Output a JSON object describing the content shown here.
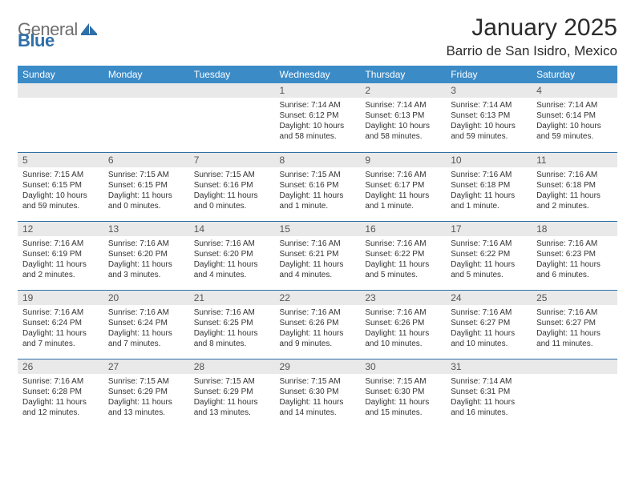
{
  "brand": {
    "part1": "General",
    "part2": "Blue"
  },
  "title": "January 2025",
  "location": "Barrio de San Isidro, Mexico",
  "colors": {
    "header_bg": "#3b8bc7",
    "header_text": "#ffffff",
    "daynum_bg": "#e9e9e9",
    "row_border": "#2f6fa8",
    "logo_gray": "#6e6e6e",
    "logo_blue": "#2f6fa8",
    "body_text": "#333333",
    "page_bg": "#ffffff"
  },
  "typography": {
    "title_pt": 30,
    "location_pt": 17,
    "header_pt": 12,
    "daynum_pt": 12,
    "body_pt": 10
  },
  "weekdays": [
    "Sunday",
    "Monday",
    "Tuesday",
    "Wednesday",
    "Thursday",
    "Friday",
    "Saturday"
  ],
  "weeks": [
    [
      null,
      null,
      null,
      {
        "n": "1",
        "l1": "Sunrise: 7:14 AM",
        "l2": "Sunset: 6:12 PM",
        "l3": "Daylight: 10 hours",
        "l4": "and 58 minutes."
      },
      {
        "n": "2",
        "l1": "Sunrise: 7:14 AM",
        "l2": "Sunset: 6:13 PM",
        "l3": "Daylight: 10 hours",
        "l4": "and 58 minutes."
      },
      {
        "n": "3",
        "l1": "Sunrise: 7:14 AM",
        "l2": "Sunset: 6:13 PM",
        "l3": "Daylight: 10 hours",
        "l4": "and 59 minutes."
      },
      {
        "n": "4",
        "l1": "Sunrise: 7:14 AM",
        "l2": "Sunset: 6:14 PM",
        "l3": "Daylight: 10 hours",
        "l4": "and 59 minutes."
      }
    ],
    [
      {
        "n": "5",
        "l1": "Sunrise: 7:15 AM",
        "l2": "Sunset: 6:15 PM",
        "l3": "Daylight: 10 hours",
        "l4": "and 59 minutes."
      },
      {
        "n": "6",
        "l1": "Sunrise: 7:15 AM",
        "l2": "Sunset: 6:15 PM",
        "l3": "Daylight: 11 hours",
        "l4": "and 0 minutes."
      },
      {
        "n": "7",
        "l1": "Sunrise: 7:15 AM",
        "l2": "Sunset: 6:16 PM",
        "l3": "Daylight: 11 hours",
        "l4": "and 0 minutes."
      },
      {
        "n": "8",
        "l1": "Sunrise: 7:15 AM",
        "l2": "Sunset: 6:16 PM",
        "l3": "Daylight: 11 hours",
        "l4": "and 1 minute."
      },
      {
        "n": "9",
        "l1": "Sunrise: 7:16 AM",
        "l2": "Sunset: 6:17 PM",
        "l3": "Daylight: 11 hours",
        "l4": "and 1 minute."
      },
      {
        "n": "10",
        "l1": "Sunrise: 7:16 AM",
        "l2": "Sunset: 6:18 PM",
        "l3": "Daylight: 11 hours",
        "l4": "and 1 minute."
      },
      {
        "n": "11",
        "l1": "Sunrise: 7:16 AM",
        "l2": "Sunset: 6:18 PM",
        "l3": "Daylight: 11 hours",
        "l4": "and 2 minutes."
      }
    ],
    [
      {
        "n": "12",
        "l1": "Sunrise: 7:16 AM",
        "l2": "Sunset: 6:19 PM",
        "l3": "Daylight: 11 hours",
        "l4": "and 2 minutes."
      },
      {
        "n": "13",
        "l1": "Sunrise: 7:16 AM",
        "l2": "Sunset: 6:20 PM",
        "l3": "Daylight: 11 hours",
        "l4": "and 3 minutes."
      },
      {
        "n": "14",
        "l1": "Sunrise: 7:16 AM",
        "l2": "Sunset: 6:20 PM",
        "l3": "Daylight: 11 hours",
        "l4": "and 4 minutes."
      },
      {
        "n": "15",
        "l1": "Sunrise: 7:16 AM",
        "l2": "Sunset: 6:21 PM",
        "l3": "Daylight: 11 hours",
        "l4": "and 4 minutes."
      },
      {
        "n": "16",
        "l1": "Sunrise: 7:16 AM",
        "l2": "Sunset: 6:22 PM",
        "l3": "Daylight: 11 hours",
        "l4": "and 5 minutes."
      },
      {
        "n": "17",
        "l1": "Sunrise: 7:16 AM",
        "l2": "Sunset: 6:22 PM",
        "l3": "Daylight: 11 hours",
        "l4": "and 5 minutes."
      },
      {
        "n": "18",
        "l1": "Sunrise: 7:16 AM",
        "l2": "Sunset: 6:23 PM",
        "l3": "Daylight: 11 hours",
        "l4": "and 6 minutes."
      }
    ],
    [
      {
        "n": "19",
        "l1": "Sunrise: 7:16 AM",
        "l2": "Sunset: 6:24 PM",
        "l3": "Daylight: 11 hours",
        "l4": "and 7 minutes."
      },
      {
        "n": "20",
        "l1": "Sunrise: 7:16 AM",
        "l2": "Sunset: 6:24 PM",
        "l3": "Daylight: 11 hours",
        "l4": "and 7 minutes."
      },
      {
        "n": "21",
        "l1": "Sunrise: 7:16 AM",
        "l2": "Sunset: 6:25 PM",
        "l3": "Daylight: 11 hours",
        "l4": "and 8 minutes."
      },
      {
        "n": "22",
        "l1": "Sunrise: 7:16 AM",
        "l2": "Sunset: 6:26 PM",
        "l3": "Daylight: 11 hours",
        "l4": "and 9 minutes."
      },
      {
        "n": "23",
        "l1": "Sunrise: 7:16 AM",
        "l2": "Sunset: 6:26 PM",
        "l3": "Daylight: 11 hours",
        "l4": "and 10 minutes."
      },
      {
        "n": "24",
        "l1": "Sunrise: 7:16 AM",
        "l2": "Sunset: 6:27 PM",
        "l3": "Daylight: 11 hours",
        "l4": "and 10 minutes."
      },
      {
        "n": "25",
        "l1": "Sunrise: 7:16 AM",
        "l2": "Sunset: 6:27 PM",
        "l3": "Daylight: 11 hours",
        "l4": "and 11 minutes."
      }
    ],
    [
      {
        "n": "26",
        "l1": "Sunrise: 7:16 AM",
        "l2": "Sunset: 6:28 PM",
        "l3": "Daylight: 11 hours",
        "l4": "and 12 minutes."
      },
      {
        "n": "27",
        "l1": "Sunrise: 7:15 AM",
        "l2": "Sunset: 6:29 PM",
        "l3": "Daylight: 11 hours",
        "l4": "and 13 minutes."
      },
      {
        "n": "28",
        "l1": "Sunrise: 7:15 AM",
        "l2": "Sunset: 6:29 PM",
        "l3": "Daylight: 11 hours",
        "l4": "and 13 minutes."
      },
      {
        "n": "29",
        "l1": "Sunrise: 7:15 AM",
        "l2": "Sunset: 6:30 PM",
        "l3": "Daylight: 11 hours",
        "l4": "and 14 minutes."
      },
      {
        "n": "30",
        "l1": "Sunrise: 7:15 AM",
        "l2": "Sunset: 6:30 PM",
        "l3": "Daylight: 11 hours",
        "l4": "and 15 minutes."
      },
      {
        "n": "31",
        "l1": "Sunrise: 7:14 AM",
        "l2": "Sunset: 6:31 PM",
        "l3": "Daylight: 11 hours",
        "l4": "and 16 minutes."
      },
      null
    ]
  ]
}
